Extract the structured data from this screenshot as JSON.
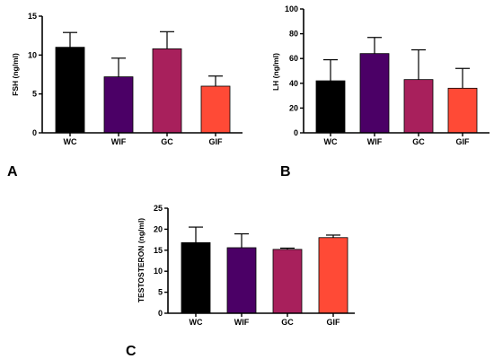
{
  "chart_data": [
    {
      "type": "bar",
      "panel": "A",
      "categories": [
        "WC",
        "WIF",
        "GC",
        "GIF"
      ],
      "values": [
        11.0,
        7.2,
        10.8,
        6.0
      ],
      "errors": [
        1.9,
        2.4,
        2.2,
        1.3
      ],
      "ylabel": "FSH (ng/ml)",
      "ylim": [
        0,
        15
      ],
      "yticks": [
        0,
        5,
        10,
        15
      ],
      "grid": false,
      "colors": [
        "#000000",
        "#4b0066",
        "#a8205c",
        "#ff4a36"
      ]
    },
    {
      "type": "bar",
      "panel": "B",
      "categories": [
        "WC",
        "WIF",
        "GC",
        "GIF"
      ],
      "values": [
        42,
        64,
        43,
        36
      ],
      "errors": [
        17,
        13,
        24,
        16
      ],
      "ylabel": "LH (ng/ml)",
      "ylim": [
        0,
        100
      ],
      "yticks": [
        0,
        20,
        40,
        60,
        80,
        100
      ],
      "grid": false,
      "colors": [
        "#000000",
        "#4b0066",
        "#a8205c",
        "#ff4a36"
      ]
    },
    {
      "type": "bar",
      "panel": "C",
      "categories": [
        "WC",
        "WIF",
        "GC",
        "GIF"
      ],
      "values": [
        16.8,
        15.6,
        15.2,
        18.0
      ],
      "errors": [
        3.7,
        3.3,
        0.3,
        0.6
      ],
      "ylabel": "TESTOSTERON (ng/ml)",
      "ylim": [
        0,
        25
      ],
      "yticks": [
        0,
        5,
        10,
        15,
        20,
        25
      ],
      "grid": false,
      "colors": [
        "#000000",
        "#4b0066",
        "#a8205c",
        "#ff4a36"
      ]
    }
  ]
}
